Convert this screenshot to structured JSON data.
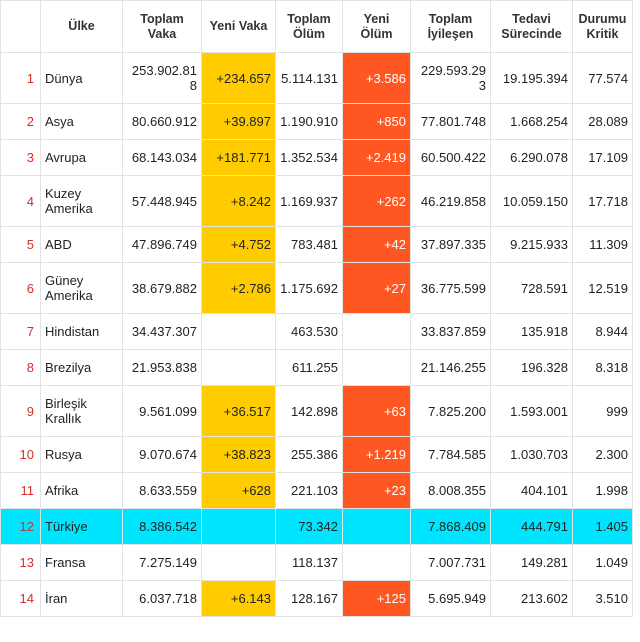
{
  "table": {
    "headers": [
      "",
      "Ülke",
      "Toplam Vaka",
      "Yeni Vaka",
      "Toplam Ölüm",
      "Yeni Ölüm",
      "Toplam İyileşen",
      "Tedavi Sürecinde",
      "Durumu Kritik"
    ],
    "rows": [
      [
        "1",
        "Dünya",
        "253.902.818",
        "+234.657",
        "5.114.131",
        "+3.586",
        "229.593.293",
        "19.195.394",
        "77.574"
      ],
      [
        "2",
        "Asya",
        "80.660.912",
        "+39.897",
        "1.190.910",
        "+850",
        "77.801.748",
        "1.668.254",
        "28.089"
      ],
      [
        "3",
        "Avrupa",
        "68.143.034",
        "+181.771",
        "1.352.534",
        "+2.419",
        "60.500.422",
        "6.290.078",
        "17.109"
      ],
      [
        "4",
        "Kuzey Amerika",
        "57.448.945",
        "+8.242",
        "1.169.937",
        "+262",
        "46.219.858",
        "10.059.150",
        "17.718"
      ],
      [
        "5",
        "ABD",
        "47.896.749",
        "+4.752",
        "783.481",
        "+42",
        "37.897.335",
        "9.215.933",
        "11.309"
      ],
      [
        "6",
        "Güney Amerika",
        "38.679.882",
        "+2.786",
        "1.175.692",
        "+27",
        "36.775.599",
        "728.591",
        "12.519"
      ],
      [
        "7",
        "Hindistan",
        "34.437.307",
        null,
        "463.530",
        null,
        "33.837.859",
        "135.918",
        "8.944"
      ],
      [
        "8",
        "Brezilya",
        "21.953.838",
        null,
        "611.255",
        null,
        "21.146.255",
        "196.328",
        "8.318"
      ],
      [
        "9",
        "Birleşik Krallık",
        "9.561.099",
        "+36.517",
        "142.898",
        "+63",
        "7.825.200",
        "1.593.001",
        "999"
      ],
      [
        "10",
        "Rusya",
        "9.070.674",
        "+38.823",
        "255.386",
        "+1.219",
        "7.784.585",
        "1.030.703",
        "2.300"
      ],
      [
        "11",
        "Afrika",
        "8.633.559",
        "+628",
        "221.103",
        "+23",
        "8.008.355",
        "404.101",
        "1.998"
      ],
      [
        "12",
        "Türkiye",
        "8.386.542",
        null,
        "73.342",
        null,
        "7.868.409",
        "444.791",
        "1.405"
      ],
      [
        "13",
        "Fransa",
        "7.275.149",
        null,
        "118.137",
        null,
        "7.007.731",
        "149.281",
        "1.049"
      ],
      [
        "14",
        "İran",
        "6.037.718",
        "+6.143",
        "128.167",
        "+125",
        "5.695.949",
        "213.602",
        "3.510"
      ]
    ]
  }
}
